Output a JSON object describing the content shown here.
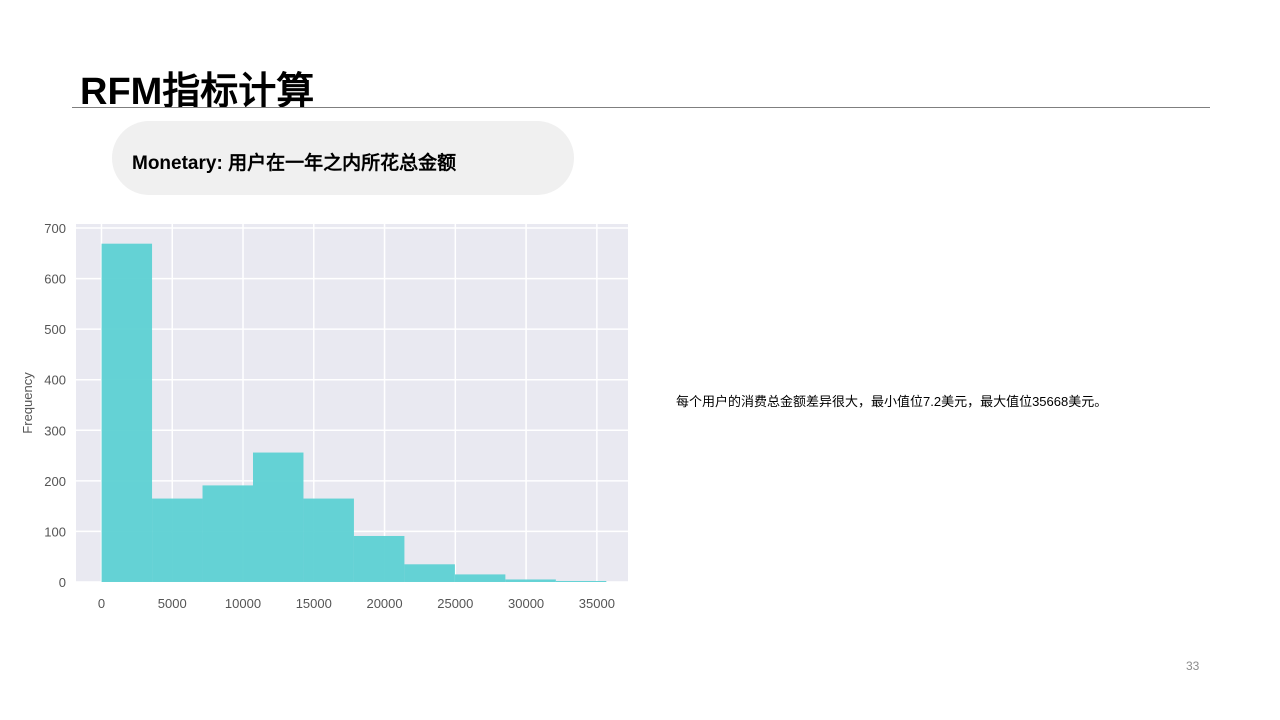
{
  "slide": {
    "title": "RFM指标计算",
    "subtitle": "Monetary: 用户在一年之内所花总金额",
    "note": "每个用户的消费总金额差异很大，最小值位7.2美元，最大值位35668美元。",
    "page_number": "33"
  },
  "chart_data": {
    "type": "bar",
    "title": "",
    "xlabel": "",
    "ylabel": "Frequency",
    "xlim": [
      -1800,
      37200
    ],
    "ylim": [
      0,
      700
    ],
    "x_ticks": [
      0,
      5000,
      10000,
      15000,
      20000,
      25000,
      30000,
      35000
    ],
    "y_ticks": [
      0,
      100,
      200,
      300,
      400,
      500,
      600,
      700
    ],
    "bins": [
      {
        "start": 7.2,
        "end": 3573,
        "count": 669
      },
      {
        "start": 3573,
        "end": 7139,
        "count": 165
      },
      {
        "start": 7139,
        "end": 10705,
        "count": 191
      },
      {
        "start": 10705,
        "end": 14271,
        "count": 256
      },
      {
        "start": 14271,
        "end": 17837,
        "count": 165
      },
      {
        "start": 17837,
        "end": 21403,
        "count": 91
      },
      {
        "start": 21403,
        "end": 24970,
        "count": 35
      },
      {
        "start": 24970,
        "end": 28536,
        "count": 15
      },
      {
        "start": 28536,
        "end": 32102,
        "count": 5
      },
      {
        "start": 32102,
        "end": 35668,
        "count": 2
      }
    ],
    "grid": true,
    "colors": {
      "bar": "#5dd1d3",
      "plot_bg": "#e9e9f1",
      "grid": "#ffffff",
      "tick_text": "#555555"
    }
  }
}
